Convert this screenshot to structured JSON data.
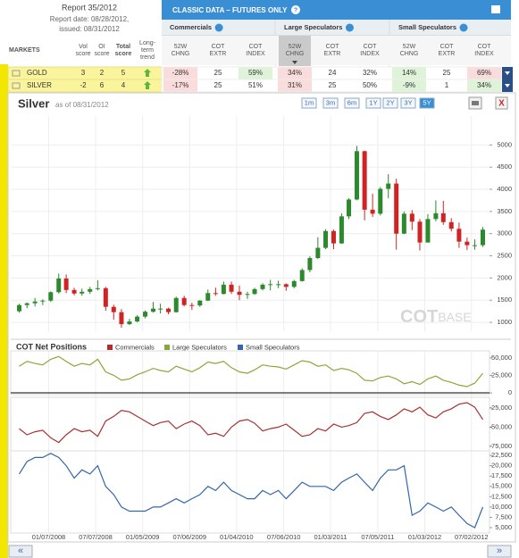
{
  "report": {
    "title": "Report 35/2012",
    "date": "Report date: 08/28/2012,",
    "issued": "issued: 08/31/2012"
  },
  "table": {
    "title": "CLASSIC DATA – FUTURES ONLY",
    "groups": [
      "Commercials",
      "Large Speculators",
      "Small Speculators"
    ],
    "columns": [
      [
        "MARKETS"
      ],
      [
        "Vol",
        "score"
      ],
      [
        "OI",
        "score"
      ],
      [
        "Total",
        "score"
      ],
      [
        "Long-",
        "term",
        "trend"
      ],
      [
        "52W",
        "CHNG"
      ],
      [
        "COT",
        "EXTR"
      ],
      [
        "COT",
        "INDEX"
      ],
      [
        "52W",
        "CHNG"
      ],
      [
        "COT",
        "EXTR"
      ],
      [
        "COT",
        "INDEX"
      ],
      [
        "52W",
        "CHNG"
      ],
      [
        "COT",
        "EXTR"
      ],
      [
        "COT",
        "INDEX"
      ]
    ],
    "sorted_column": 8,
    "rows": [
      {
        "market": "GOLD",
        "cells": [
          3,
          2,
          5,
          {
            "value": "-28%",
            "color": "#fbdcdc"
          },
          25,
          {
            "value": "59%",
            "color": "#def3d8"
          },
          {
            "value": "34%",
            "color": "#fbdcdc"
          },
          24,
          "32%",
          {
            "value": "14%",
            "color": "#def3d8"
          },
          25,
          {
            "value": "69%",
            "color": "#fbdcdc"
          }
        ]
      },
      {
        "market": "SILVER",
        "cells": [
          -2,
          6,
          4,
          {
            "value": "-17%",
            "color": "#fbdcdc"
          },
          25,
          "51%",
          {
            "value": "31%",
            "color": "#fbdcdc"
          },
          25,
          "50%",
          {
            "value": "-9%",
            "color": "#def3d8"
          },
          1,
          {
            "value": "34%",
            "color": "#def3d8"
          }
        ]
      }
    ]
  },
  "panel": {
    "ranges": [
      "1m",
      "3m",
      "6m",
      "1Y",
      "2Y",
      "3Y",
      "5Y"
    ],
    "active_range": 6,
    "close": "X",
    "nav": [
      "«",
      "»"
    ]
  },
  "chart_data": [
    {
      "type": "candlestick",
      "title": "Silver",
      "subtitle": "as of 08/31/2012",
      "watermark": [
        "COT",
        "BASE"
      ],
      "up_color": "#2c8a2c",
      "down_color": "#d02424",
      "grid": true,
      "xlim": [
        "08/13/2007",
        "09/10/2012"
      ],
      "xticks": [
        "01/07/2008",
        "07/07/2008",
        "01/05/2009",
        "07/06/2009",
        "01/04/2010",
        "07/06/2010",
        "01/03/2011",
        "07/05/2011",
        "01/03/2012",
        "07/02/2012"
      ],
      "x": [
        "09/15/2007",
        "10/15/2007",
        "11/15/2007",
        "12/15/2007",
        "01/15/2008",
        "02/15/2008",
        "03/15/2008",
        "04/15/2008",
        "05/15/2008",
        "06/15/2008",
        "07/15/2008",
        "08/15/2008",
        "09/15/2008",
        "10/15/2008",
        "11/15/2008",
        "12/15/2008",
        "01/15/2009",
        "02/15/2009",
        "03/15/2009",
        "04/15/2009",
        "05/15/2009",
        "06/15/2009",
        "07/15/2009",
        "08/15/2009",
        "09/15/2009",
        "10/15/2009",
        "11/15/2009",
        "12/15/2009",
        "01/15/2010",
        "02/15/2010",
        "03/15/2010",
        "04/15/2010",
        "05/15/2010",
        "06/15/2010",
        "07/15/2010",
        "08/15/2010",
        "09/15/2010",
        "10/15/2010",
        "11/15/2010",
        "12/15/2010",
        "01/15/2011",
        "02/15/2011",
        "03/15/2011",
        "04/15/2011",
        "05/15/2011",
        "06/15/2011",
        "07/15/2011",
        "08/15/2011",
        "09/15/2011",
        "10/15/2011",
        "11/15/2011",
        "12/15/2011",
        "01/15/2012",
        "02/15/2012",
        "03/15/2012",
        "04/15/2012",
        "05/15/2012",
        "06/15/2012",
        "07/15/2012",
        "08/15/2012"
      ],
      "open": [
        1250,
        1390,
        1430,
        1470,
        1490,
        1680,
        1990,
        1730,
        1650,
        1690,
        1750,
        1770,
        1350,
        1230,
        960,
        1020,
        1130,
        1240,
        1310,
        1310,
        1230,
        1550,
        1390,
        1380,
        1490,
        1660,
        1640,
        1850,
        1690,
        1620,
        1640,
        1750,
        1850,
        1860,
        1860,
        1800,
        1930,
        2180,
        2450,
        2680,
        3060,
        2780,
        3390,
        3770,
        4860,
        3540,
        3450,
        4010,
        4130,
        3000,
        3450,
        3270,
        2800,
        3330,
        3460,
        3260,
        3110,
        2820,
        2740,
        2740
      ],
      "high": [
        1420,
        1450,
        1550,
        1520,
        1700,
        2100,
        2080,
        1780,
        1760,
        1800,
        1950,
        1800,
        1400,
        1300,
        1080,
        1160,
        1270,
        1460,
        1420,
        1330,
        1580,
        1600,
        1440,
        1500,
        1740,
        1780,
        1920,
        1920,
        1830,
        1690,
        1780,
        1880,
        1960,
        1940,
        1880,
        1960,
        2220,
        2490,
        2920,
        3100,
        3090,
        3460,
        3800,
        4980,
        4870,
        3900,
        4050,
        4340,
        4240,
        3500,
        3530,
        3330,
        3440,
        3750,
        3740,
        3350,
        3250,
        2910,
        2870,
        3150
      ],
      "low": [
        1220,
        1320,
        1360,
        1390,
        1460,
        1650,
        1660,
        1610,
        1600,
        1640,
        1720,
        1260,
        1060,
        880,
        940,
        1000,
        1090,
        1220,
        1200,
        1180,
        1220,
        1360,
        1280,
        1350,
        1480,
        1600,
        1630,
        1640,
        1500,
        1530,
        1620,
        1720,
        1720,
        1770,
        1710,
        1770,
        1920,
        2130,
        2430,
        2650,
        2650,
        2770,
        3330,
        3750,
        3300,
        3380,
        3410,
        3800,
        2640,
        2990,
        3080,
        2620,
        2800,
        3280,
        3200,
        3050,
        2680,
        2630,
        2640,
        2700
      ],
      "close": [
        1390,
        1430,
        1470,
        1490,
        1680,
        1990,
        1730,
        1650,
        1690,
        1750,
        1770,
        1350,
        1230,
        960,
        1020,
        1130,
        1240,
        1310,
        1310,
        1230,
        1550,
        1390,
        1380,
        1490,
        1660,
        1640,
        1850,
        1690,
        1620,
        1640,
        1750,
        1850,
        1860,
        1860,
        1800,
        1930,
        2180,
        2450,
        2680,
        3060,
        2780,
        3390,
        3770,
        4860,
        3540,
        3450,
        4010,
        4130,
        3000,
        3450,
        3270,
        2800,
        3330,
        3460,
        3260,
        3110,
        2820,
        2740,
        2740,
        3090
      ],
      "ylim": [
        800,
        5450
      ],
      "yticks": [
        1000,
        1500,
        2000,
        2500,
        3000,
        3500,
        4000,
        4500,
        5000
      ]
    },
    {
      "type": "line",
      "title": "COT Net Positions",
      "baseline": 0,
      "series": [
        {
          "name": "Large Speculators",
          "color": "#8aa83a",
          "values": [
            38000,
            45000,
            42000,
            40000,
            48000,
            52000,
            45000,
            38000,
            42000,
            40000,
            48000,
            30000,
            25000,
            18000,
            20000,
            26000,
            30000,
            35000,
            32000,
            30000,
            38000,
            34000,
            30000,
            36000,
            44000,
            42000,
            45000,
            36000,
            30000,
            28000,
            33000,
            40000,
            38000,
            37000,
            34000,
            40000,
            46000,
            44000,
            38000,
            40000,
            32000,
            35000,
            33000,
            28000,
            18000,
            17000,
            22000,
            24000,
            20000,
            13000,
            16000,
            12000,
            20000,
            24000,
            18000,
            15000,
            11000,
            9000,
            14000,
            28000
          ]
        }
      ],
      "ylim": [
        -2500,
        60000
      ],
      "yticks": [
        {
          "value": 50000,
          "label": "50,000"
        },
        {
          "value": 25000,
          "label": "25,000"
        },
        0
      ]
    },
    {
      "type": "line",
      "series": [
        {
          "name": "Commercials",
          "color": "#a83232",
          "values": [
            -52000,
            -60000,
            -56000,
            -54000,
            -64000,
            -70000,
            -60000,
            -52000,
            -56000,
            -54000,
            -62000,
            -42000,
            -36000,
            -28000,
            -30000,
            -36000,
            -42000,
            -48000,
            -44000,
            -42000,
            -52000,
            -46000,
            -42000,
            -48000,
            -60000,
            -58000,
            -62000,
            -50000,
            -42000,
            -40000,
            -45000,
            -55000,
            -52000,
            -50000,
            -46000,
            -54000,
            -62000,
            -60000,
            -52000,
            -55000,
            -46000,
            -50000,
            -48000,
            -44000,
            -32000,
            -30000,
            -36000,
            -40000,
            -34000,
            -26000,
            -30000,
            -24000,
            -34000,
            -38000,
            -30000,
            -26000,
            -20000,
            -18000,
            -24000,
            -40000
          ]
        }
      ],
      "ylim": [
        -81000,
        -11000
      ],
      "yticks": [
        {
          "value": -25000,
          "label": "-25,000"
        },
        {
          "value": -50000,
          "label": "-50,000"
        },
        {
          "value": -75000,
          "label": "-75,000"
        }
      ]
    },
    {
      "type": "line",
      "series": [
        {
          "name": "Small Speculators",
          "color": "#3566a8",
          "values": [
            18000,
            21000,
            22000,
            22000,
            23000,
            22000,
            20000,
            17000,
            19000,
            18000,
            20000,
            15000,
            13000,
            10000,
            9000,
            9000,
            9000,
            10000,
            10000,
            11000,
            12000,
            11000,
            12000,
            13000,
            15000,
            14000,
            16000,
            14000,
            13000,
            12000,
            12000,
            14000,
            13000,
            14000,
            12000,
            14000,
            16000,
            15000,
            15000,
            15000,
            14000,
            16000,
            17000,
            18000,
            16000,
            14000,
            17000,
            19000,
            19000,
            20000,
            8000,
            9000,
            11000,
            10000,
            9000,
            10000,
            8000,
            6000,
            5000,
            10000
          ]
        }
      ],
      "ylim": [
        3700,
        23600
      ],
      "yticks": [
        {
          "value": 22500,
          "label": "22,500"
        },
        {
          "value": 20000,
          "label": "20,000"
        },
        {
          "value": 17500,
          "label": "17,500"
        },
        {
          "value": 15000,
          "label": "15,000"
        },
        {
          "value": 12500,
          "label": "12,500"
        },
        {
          "value": 10000,
          "label": "10,000"
        },
        {
          "value": 7500,
          "label": "7,500"
        },
        {
          "value": 5000,
          "label": "5,000"
        }
      ]
    }
  ]
}
